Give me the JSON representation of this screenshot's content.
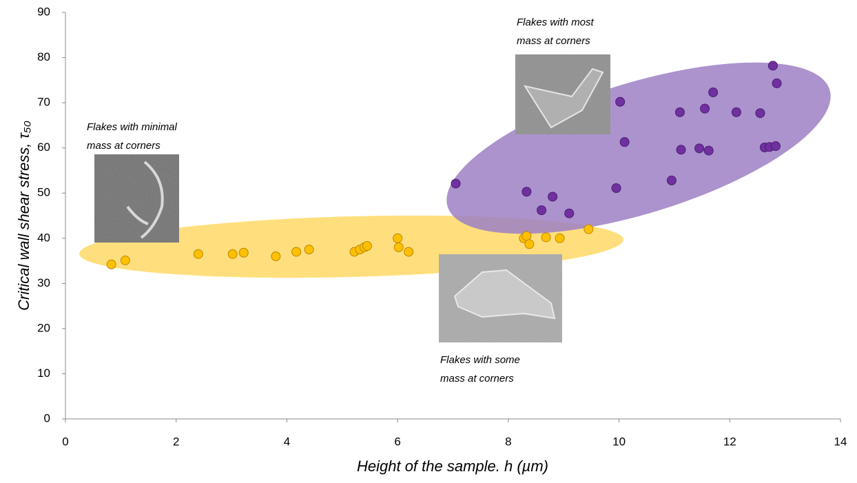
{
  "chart_data": {
    "type": "scatter",
    "x_label": "Height of the sample. h (µm)",
    "y_label": "Critical wall shear stress, τ₅₀",
    "xlim": [
      0,
      14
    ],
    "xticks": [
      0,
      2,
      4,
      6,
      8,
      10,
      12,
      14
    ],
    "ylim": [
      0,
      90
    ],
    "yticks": [
      0,
      10,
      20,
      30,
      40,
      50,
      60,
      70,
      80,
      90
    ],
    "grid": false,
    "series": [
      {
        "color": "#ffc000",
        "x": [
          0.83,
          1.08,
          2.4,
          3.02,
          3.22,
          3.8,
          4.17,
          4.4,
          5.22,
          5.32,
          5.4,
          5.45,
          6.0,
          6.02,
          6.2,
          8.28,
          8.33,
          8.38,
          8.68,
          8.93,
          9.45
        ],
        "values": [
          34.2,
          35.1,
          36.5,
          36.5,
          36.8,
          36.0,
          37.0,
          37.5,
          37.0,
          37.5,
          38.0,
          38.3,
          40.0,
          38.0,
          37.0,
          40.0,
          40.5,
          38.7,
          40.2,
          40.0,
          42.0
        ]
      },
      {
        "color": "#7030a0",
        "x": [
          7.05,
          8.33,
          8.6,
          8.8,
          9.1,
          9.95,
          10.02,
          10.1,
          10.95,
          11.1,
          11.12,
          11.45,
          11.55,
          11.62,
          11.7,
          12.12,
          12.55,
          12.63,
          12.72,
          12.78,
          12.83,
          12.85
        ],
        "values": [
          52.1,
          50.3,
          46.2,
          49.2,
          45.5,
          51.1,
          70.2,
          61.3,
          52.8,
          67.9,
          59.6,
          59.9,
          68.7,
          59.4,
          72.3,
          67.9,
          67.7,
          60.1,
          60.2,
          78.2,
          60.4,
          74.3
        ]
      }
    ],
    "annotations": [
      {
        "lines": [
          "Flakes with minimal",
          "mass at corners"
        ]
      },
      {
        "lines": [
          "Flakes with most",
          "mass at corners"
        ]
      },
      {
        "lines": [
          "Flakes with some",
          "mass at corners"
        ]
      }
    ]
  }
}
